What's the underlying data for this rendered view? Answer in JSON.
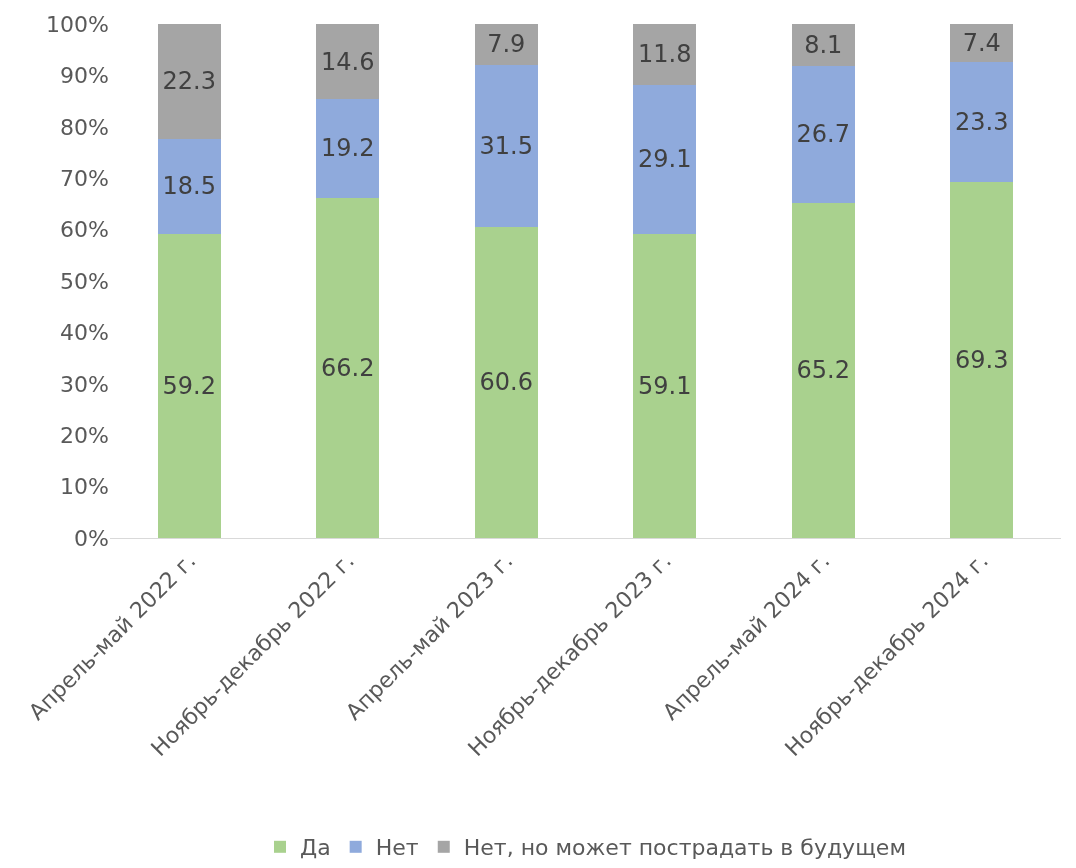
{
  "chart_data": {
    "type": "bar",
    "stacked": true,
    "categories": [
      "Апрель-май 2022 г.",
      "Ноябрь-декабрь 2022 г.",
      "Апрель-май 2023 г.",
      "Ноябрь-декабрь 2023 г.",
      "Апрель-май 2024 г.",
      "Ноябрь-декабрь 2024 г."
    ],
    "series": [
      {
        "name": "Да",
        "color": "#a9d18e",
        "values": [
          59.2,
          66.2,
          60.6,
          59.1,
          65.2,
          69.3
        ]
      },
      {
        "name": "Нет",
        "color": "#8faadc",
        "values": [
          18.5,
          19.2,
          31.5,
          29.1,
          26.7,
          23.3
        ]
      },
      {
        "name": "Нет, но может пострадать в будущем",
        "color": "#a5a5a5",
        "values": [
          22.3,
          14.6,
          7.9,
          11.8,
          8.1,
          7.4
        ]
      }
    ],
    "ylim": [
      0,
      100
    ],
    "yticks": [
      {
        "value": 0,
        "label": "0%"
      },
      {
        "value": 10,
        "label": "10%"
      },
      {
        "value": 20,
        "label": "20%"
      },
      {
        "value": 30,
        "label": "30%"
      },
      {
        "value": 40,
        "label": "40%"
      },
      {
        "value": 50,
        "label": "50%"
      },
      {
        "value": 60,
        "label": "60%"
      },
      {
        "value": 70,
        "label": "70%"
      },
      {
        "value": 80,
        "label": "80%"
      },
      {
        "value": 90,
        "label": "90%"
      },
      {
        "value": 100,
        "label": "100%"
      }
    ],
    "data_labels": true,
    "legend": "bottom",
    "grid": false
  }
}
